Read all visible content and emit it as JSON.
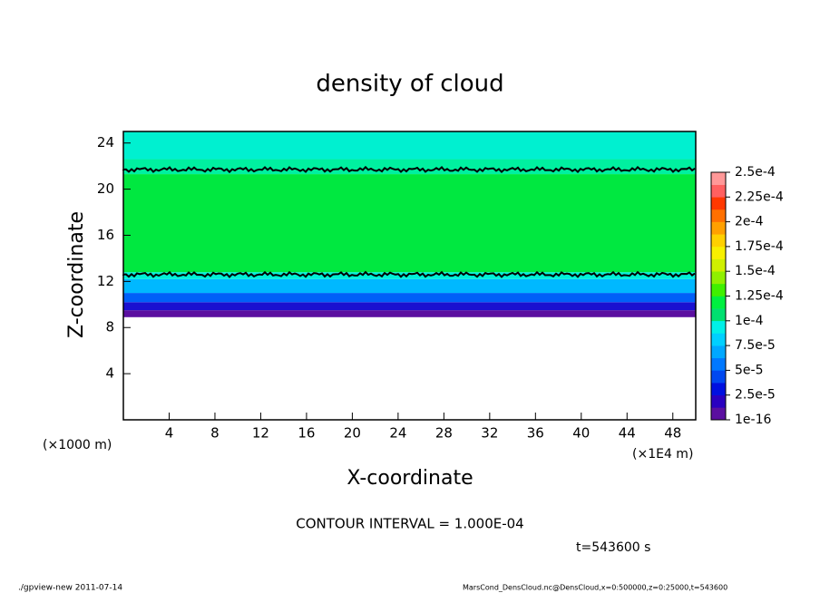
{
  "chart_data": {
    "type": "contour",
    "title": "density of cloud",
    "xlabel": "X-coordinate",
    "ylabel": "Z-coordinate",
    "x_unit": "(×1E4 m)",
    "y_unit": "(×1000 m)",
    "xlim": [
      0,
      50
    ],
    "xticks": [
      4,
      8,
      12,
      16,
      20,
      24,
      28,
      32,
      36,
      40,
      44,
      48
    ],
    "ylim": [
      0,
      25
    ],
    "yticks": [
      4,
      8,
      12,
      16,
      20,
      24
    ],
    "layers": [
      {
        "zlim": [
          8.9,
          9.5
        ],
        "color": "#5b0fa0"
      },
      {
        "zlim": [
          9.5,
          10.2
        ],
        "color": "#1a10d0"
      },
      {
        "zlim": [
          10.2,
          11.0
        ],
        "color": "#0060f8"
      },
      {
        "zlim": [
          11.0,
          12.2
        ],
        "color": "#00b8ff"
      },
      {
        "zlim": [
          12.2,
          12.8
        ],
        "color": "#00f0d8"
      },
      {
        "zlim": [
          12.8,
          21.3
        ],
        "color": "#00e840"
      },
      {
        "zlim": [
          21.3,
          22.6
        ],
        "color": "#00f0a0"
      },
      {
        "zlim": [
          22.6,
          25
        ],
        "color": "#00f0d0"
      }
    ],
    "contours": [
      12.6,
      21.7
    ],
    "colorbar": {
      "levels": [
        {
          "value": 1e-16,
          "label": "1e-16"
        },
        {
          "value": 2.5e-05,
          "label": "2.5e-5"
        },
        {
          "value": 5e-05,
          "label": "5e-5"
        },
        {
          "value": 7.5e-05,
          "label": "7.5e-5"
        },
        {
          "value": 0.0001,
          "label": "1e-4"
        },
        {
          "value": 0.000125,
          "label": "1.25e-4"
        },
        {
          "value": 0.00015,
          "label": "1.5e-4"
        },
        {
          "value": 0.000175,
          "label": "1.75e-4"
        },
        {
          "value": 0.0002,
          "label": "2e-4"
        },
        {
          "value": 0.000225,
          "label": "2.25e-4"
        },
        {
          "value": 0.00025,
          "label": "2.5e-4"
        }
      ],
      "colors": [
        "#5b0fa0",
        "#2a00c0",
        "#0010e0",
        "#0048f0",
        "#0078ff",
        "#00a8ff",
        "#00d0ff",
        "#00f0e8",
        "#00e070",
        "#00f040",
        "#40f000",
        "#90f000",
        "#d0f000",
        "#f8f000",
        "#ffd000",
        "#ffa000",
        "#ff7000",
        "#ff3800",
        "#ff6060",
        "#ff9898"
      ]
    },
    "contour_interval": "CONTOUR INTERVAL = 1.000E-04",
    "time": "t=543600 s",
    "footer_left": "./gpview-new  2011-07-14",
    "footer_right": "MarsCond_DensCloud.nc@DensCloud,x=0:500000,z=0:25000,t=543600"
  }
}
